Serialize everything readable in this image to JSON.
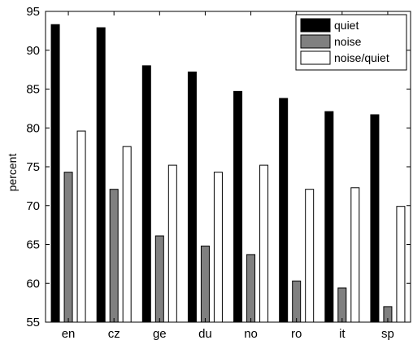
{
  "chart_data": {
    "type": "bar",
    "title": "",
    "xlabel": "",
    "ylabel": "percent",
    "ylim": [
      55,
      95
    ],
    "yticks": [
      55,
      60,
      65,
      70,
      75,
      80,
      85,
      90,
      95
    ],
    "categories": [
      "en",
      "cz",
      "ge",
      "du",
      "no",
      "ro",
      "it",
      "sp"
    ],
    "series": [
      {
        "name": "quiet",
        "color": "#000000",
        "values": [
          93.3,
          92.9,
          88.0,
          87.2,
          84.7,
          83.8,
          82.1,
          81.7
        ]
      },
      {
        "name": "noise",
        "color": "#808080",
        "values": [
          74.3,
          72.1,
          66.1,
          64.8,
          63.7,
          60.3,
          59.4,
          57.0
        ]
      },
      {
        "name": "noise/quiet",
        "color": "#ffffff",
        "values": [
          79.6,
          77.6,
          75.2,
          74.3,
          75.2,
          72.1,
          72.3,
          69.9
        ]
      }
    ],
    "legend": "top-right",
    "grid": false
  }
}
